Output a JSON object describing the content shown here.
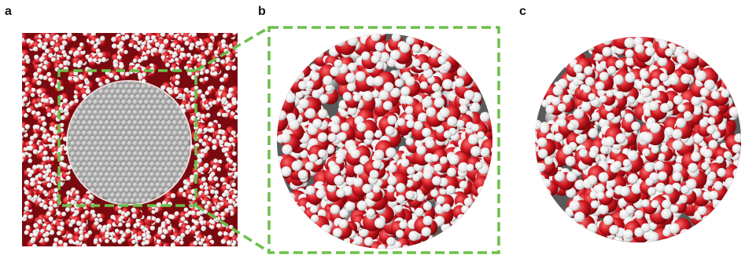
{
  "panels": [
    {
      "label": "a",
      "subject": "water-box-with-sphere"
    },
    {
      "label": "b",
      "subject": "zoomed-water-covered-sphere"
    },
    {
      "label": "c",
      "subject": "water-covered-sphere"
    }
  ],
  "colors": {
    "oxygen": "#c8141e",
    "hydrogen": "#f2f2f2",
    "core": "#9a9a9a",
    "zoom_box": "#6cc04a"
  }
}
